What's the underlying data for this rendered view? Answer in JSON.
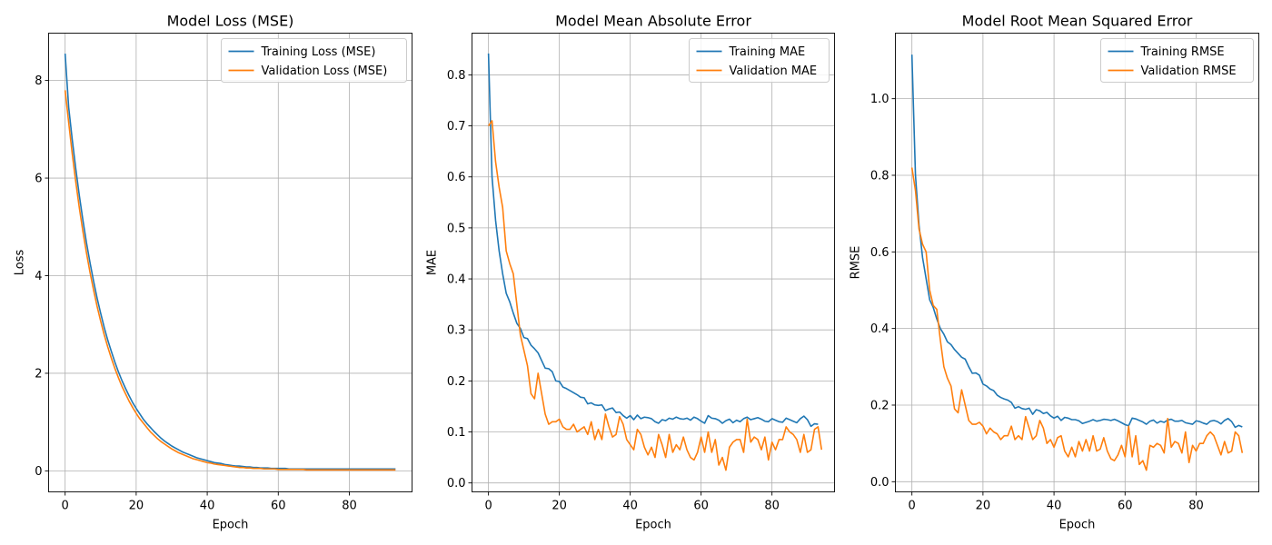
{
  "figure": {
    "colors": {
      "training": "#1f77b4",
      "validation": "#ff7f0e",
      "grid": "#b0b0b0",
      "axes": "#000000"
    }
  },
  "chart_data": [
    {
      "type": "line",
      "title": "Model Loss (MSE)",
      "xlabel": "Epoch",
      "ylabel": "Loss",
      "xlim": [
        -4.65,
        97.65
      ],
      "ylim": [
        -0.43,
        8.97
      ],
      "xticks": [
        0,
        20,
        40,
        60,
        80
      ],
      "yticks": [
        0,
        2,
        4,
        6,
        8
      ],
      "ytick_labels": [
        "0",
        "2",
        "4",
        "6",
        "8"
      ],
      "grid": true,
      "legend_position": "top-right",
      "series": [
        {
          "name": "Training Loss (MSE)",
          "key": "training",
          "values": [
            8.55,
            7.45,
            6.79,
            6.19,
            5.64,
            5.14,
            4.68,
            4.27,
            3.89,
            3.54,
            3.23,
            2.94,
            2.68,
            2.45,
            2.23,
            2.03,
            1.85,
            1.69,
            1.54,
            1.4,
            1.28,
            1.17,
            1.06,
            0.97,
            0.89,
            0.81,
            0.74,
            0.67,
            0.61,
            0.56,
            0.51,
            0.47,
            0.43,
            0.39,
            0.36,
            0.33,
            0.3,
            0.27,
            0.25,
            0.23,
            0.21,
            0.19,
            0.17,
            0.16,
            0.15,
            0.13,
            0.12,
            0.11,
            0.1,
            0.1,
            0.09,
            0.08,
            0.08,
            0.07,
            0.07,
            0.06,
            0.06,
            0.06,
            0.05,
            0.05,
            0.05,
            0.05,
            0.05,
            0.04,
            0.04,
            0.04,
            0.04,
            0.04,
            0.04,
            0.04,
            0.04,
            0.04,
            0.04,
            0.04,
            0.04,
            0.04,
            0.04,
            0.04,
            0.04,
            0.04,
            0.04,
            0.04,
            0.04,
            0.04,
            0.04,
            0.04,
            0.04,
            0.04,
            0.04,
            0.04,
            0.04,
            0.04,
            0.04,
            0.04
          ]
        },
        {
          "name": "Validation Loss (MSE)",
          "key": "validation",
          "values": [
            7.8,
            7.14,
            6.5,
            5.92,
            5.39,
            4.91,
            4.47,
            4.07,
            3.71,
            3.37,
            3.07,
            2.79,
            2.54,
            2.31,
            2.1,
            1.91,
            1.73,
            1.58,
            1.43,
            1.3,
            1.18,
            1.07,
            0.98,
            0.89,
            0.8,
            0.73,
            0.66,
            0.6,
            0.55,
            0.5,
            0.45,
            0.41,
            0.37,
            0.34,
            0.31,
            0.28,
            0.25,
            0.23,
            0.21,
            0.19,
            0.17,
            0.16,
            0.14,
            0.13,
            0.12,
            0.11,
            0.1,
            0.09,
            0.08,
            0.07,
            0.07,
            0.06,
            0.06,
            0.05,
            0.05,
            0.05,
            0.04,
            0.04,
            0.04,
            0.04,
            0.03,
            0.03,
            0.03,
            0.03,
            0.03,
            0.03,
            0.03,
            0.03,
            0.02,
            0.02,
            0.02,
            0.02,
            0.02,
            0.02,
            0.02,
            0.02,
            0.02,
            0.02,
            0.02,
            0.02,
            0.02,
            0.02,
            0.02,
            0.02,
            0.02,
            0.02,
            0.02,
            0.02,
            0.02,
            0.02,
            0.02,
            0.02,
            0.02,
            0.02
          ]
        }
      ]
    },
    {
      "type": "line",
      "title": "Model Mean Absolute Error",
      "xlabel": "Epoch",
      "ylabel": "MAE",
      "xlim": [
        -4.65,
        97.65
      ],
      "ylim": [
        -0.0175,
        0.8818
      ],
      "xticks": [
        0,
        20,
        40,
        60,
        80
      ],
      "yticks": [
        0,
        0.1,
        0.2,
        0.3,
        0.4,
        0.5,
        0.6,
        0.7,
        0.8
      ],
      "ytick_labels": [
        "0.0",
        "0.1",
        "0.2",
        "0.3",
        "0.4",
        "0.5",
        "0.6",
        "0.7",
        "0.8"
      ],
      "grid": true,
      "legend_position": "top-right",
      "series": [
        {
          "name": "Training MAE",
          "key": "training",
          "values": [
            0.842,
            0.6,
            0.515,
            0.455,
            0.41,
            0.372,
            0.355,
            0.333,
            0.313,
            0.303,
            0.285,
            0.283,
            0.27,
            0.263,
            0.255,
            0.24,
            0.225,
            0.224,
            0.218,
            0.2,
            0.199,
            0.188,
            0.185,
            0.181,
            0.177,
            0.173,
            0.168,
            0.167,
            0.155,
            0.157,
            0.153,
            0.152,
            0.153,
            0.142,
            0.145,
            0.147,
            0.138,
            0.139,
            0.132,
            0.127,
            0.132,
            0.124,
            0.133,
            0.126,
            0.129,
            0.128,
            0.126,
            0.12,
            0.117,
            0.124,
            0.122,
            0.127,
            0.125,
            0.129,
            0.126,
            0.125,
            0.127,
            0.123,
            0.129,
            0.126,
            0.121,
            0.117,
            0.132,
            0.127,
            0.126,
            0.123,
            0.117,
            0.122,
            0.125,
            0.118,
            0.123,
            0.12,
            0.126,
            0.129,
            0.124,
            0.126,
            0.128,
            0.125,
            0.121,
            0.12,
            0.126,
            0.123,
            0.12,
            0.119,
            0.127,
            0.124,
            0.121,
            0.118,
            0.126,
            0.131,
            0.124,
            0.111,
            0.116,
            0.115
          ]
        },
        {
          "name": "Validation MAE",
          "key": "validation",
          "values": [
            0.7,
            0.71,
            0.63,
            0.58,
            0.54,
            0.455,
            0.43,
            0.41,
            0.35,
            0.29,
            0.26,
            0.23,
            0.175,
            0.165,
            0.215,
            0.175,
            0.135,
            0.115,
            0.12,
            0.12,
            0.125,
            0.11,
            0.105,
            0.105,
            0.115,
            0.1,
            0.105,
            0.11,
            0.095,
            0.12,
            0.085,
            0.105,
            0.085,
            0.135,
            0.11,
            0.09,
            0.095,
            0.13,
            0.115,
            0.085,
            0.075,
            0.065,
            0.105,
            0.095,
            0.07,
            0.055,
            0.07,
            0.05,
            0.095,
            0.075,
            0.05,
            0.095,
            0.06,
            0.075,
            0.065,
            0.09,
            0.065,
            0.05,
            0.045,
            0.06,
            0.09,
            0.06,
            0.1,
            0.06,
            0.085,
            0.035,
            0.05,
            0.025,
            0.07,
            0.08,
            0.085,
            0.085,
            0.06,
            0.125,
            0.08,
            0.09,
            0.085,
            0.065,
            0.09,
            0.045,
            0.08,
            0.065,
            0.085,
            0.085,
            0.11,
            0.1,
            0.095,
            0.085,
            0.06,
            0.095,
            0.06,
            0.065,
            0.105,
            0.11,
            0.065
          ]
        }
      ]
    },
    {
      "type": "line",
      "title": "Model Root Mean Squared Error",
      "xlabel": "Epoch",
      "ylabel": "RMSE",
      "xlim": [
        -4.65,
        97.65
      ],
      "ylim": [
        -0.0265,
        1.1711
      ],
      "xticks": [
        0,
        20,
        40,
        60,
        80
      ],
      "yticks": [
        0,
        0.2,
        0.4,
        0.6,
        0.8,
        1.0
      ],
      "ytick_labels": [
        "0.0",
        "0.2",
        "0.4",
        "0.6",
        "0.8",
        "1.0"
      ],
      "grid": true,
      "legend_position": "top-right",
      "series": [
        {
          "name": "Training RMSE",
          "key": "training",
          "values": [
            1.115,
            0.8,
            0.67,
            0.585,
            0.53,
            0.475,
            0.455,
            0.425,
            0.4,
            0.385,
            0.365,
            0.358,
            0.345,
            0.335,
            0.325,
            0.32,
            0.3,
            0.283,
            0.284,
            0.278,
            0.255,
            0.25,
            0.242,
            0.238,
            0.226,
            0.22,
            0.216,
            0.213,
            0.207,
            0.192,
            0.196,
            0.191,
            0.189,
            0.192,
            0.176,
            0.188,
            0.185,
            0.178,
            0.181,
            0.172,
            0.166,
            0.171,
            0.16,
            0.168,
            0.166,
            0.162,
            0.162,
            0.159,
            0.152,
            0.155,
            0.158,
            0.162,
            0.158,
            0.16,
            0.163,
            0.162,
            0.16,
            0.163,
            0.159,
            0.154,
            0.149,
            0.146,
            0.166,
            0.164,
            0.16,
            0.156,
            0.15,
            0.158,
            0.161,
            0.153,
            0.158,
            0.155,
            0.161,
            0.163,
            0.158,
            0.158,
            0.16,
            0.154,
            0.152,
            0.15,
            0.159,
            0.157,
            0.153,
            0.15,
            0.158,
            0.16,
            0.157,
            0.151,
            0.16,
            0.165,
            0.157,
            0.142,
            0.147,
            0.143
          ]
        },
        {
          "name": "Validation RMSE",
          "key": "validation",
          "values": [
            0.82,
            0.76,
            0.66,
            0.62,
            0.6,
            0.5,
            0.46,
            0.45,
            0.37,
            0.3,
            0.27,
            0.25,
            0.19,
            0.18,
            0.24,
            0.2,
            0.16,
            0.15,
            0.15,
            0.155,
            0.145,
            0.125,
            0.14,
            0.13,
            0.125,
            0.11,
            0.12,
            0.12,
            0.145,
            0.11,
            0.12,
            0.11,
            0.17,
            0.14,
            0.11,
            0.12,
            0.16,
            0.14,
            0.1,
            0.11,
            0.09,
            0.115,
            0.12,
            0.08,
            0.065,
            0.09,
            0.065,
            0.105,
            0.08,
            0.11,
            0.08,
            0.12,
            0.08,
            0.085,
            0.115,
            0.08,
            0.06,
            0.055,
            0.07,
            0.095,
            0.065,
            0.145,
            0.065,
            0.12,
            0.045,
            0.055,
            0.03,
            0.095,
            0.09,
            0.1,
            0.095,
            0.075,
            0.165,
            0.09,
            0.105,
            0.1,
            0.075,
            0.13,
            0.05,
            0.095,
            0.08,
            0.1,
            0.1,
            0.12,
            0.13,
            0.12,
            0.095,
            0.07,
            0.105,
            0.075,
            0.08,
            0.13,
            0.12,
            0.075
          ]
        }
      ]
    }
  ]
}
